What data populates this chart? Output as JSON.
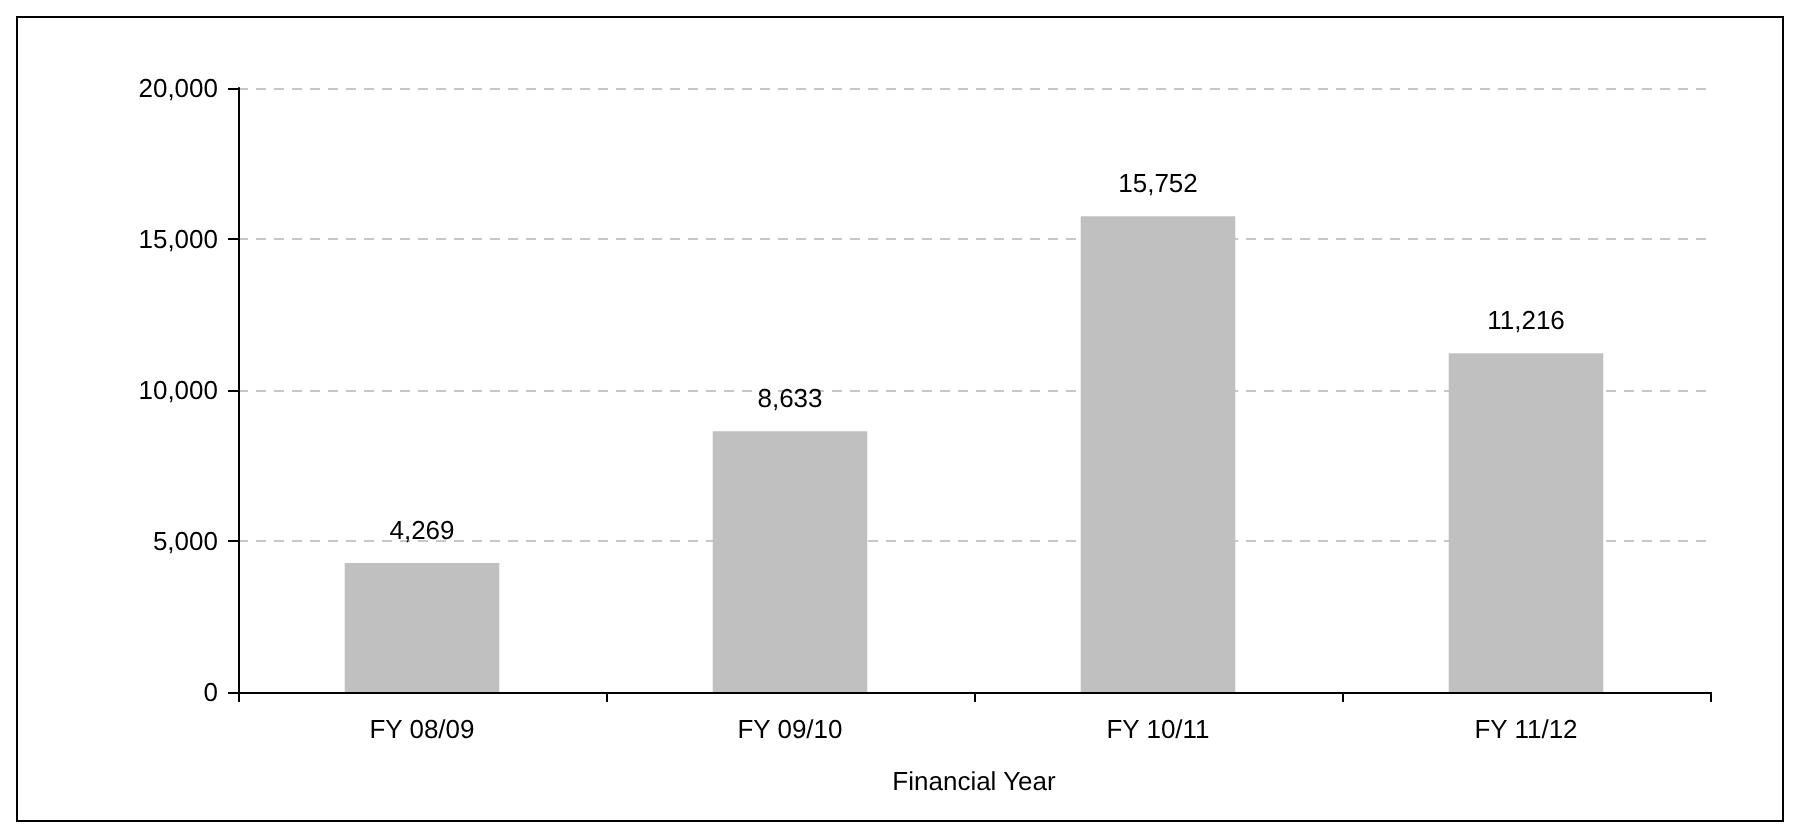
{
  "chart_data": {
    "type": "bar",
    "xlabel": "Financial Year",
    "categories": [
      "FY 08/09",
      "FY 09/10",
      "FY 10/11",
      "FY 11/12"
    ],
    "values": [
      4269,
      8633,
      15752,
      11216
    ],
    "value_labels": [
      "4,269",
      "8,633",
      "15,752",
      "11,216"
    ],
    "color": "#c0c0c0",
    "ylim": [
      0,
      20000
    ],
    "yticks": [
      {
        "value": 0,
        "label": "0"
      },
      {
        "value": 5000,
        "label": "5,000"
      },
      {
        "value": 10000,
        "label": "10,000"
      },
      {
        "value": 15000,
        "label": "15,000"
      },
      {
        "value": 20000,
        "label": "20,000"
      }
    ],
    "grid": "y"
  }
}
